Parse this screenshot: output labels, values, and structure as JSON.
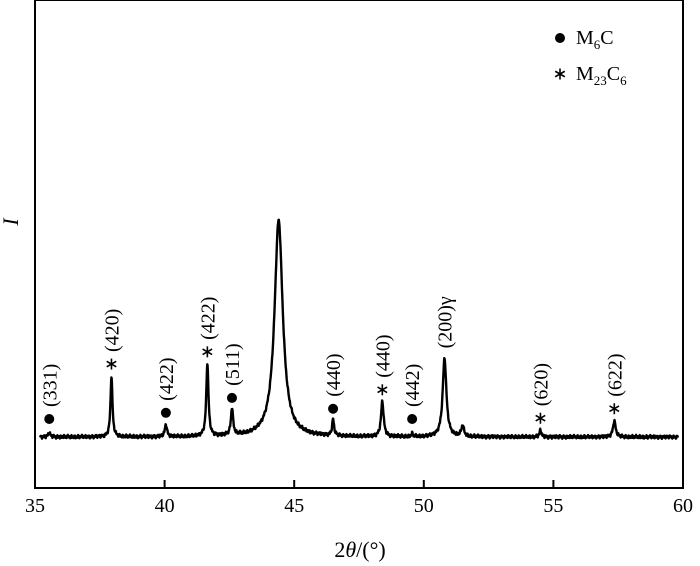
{
  "chart_data": {
    "type": "line",
    "xlabel": {
      "prefix": "2",
      "italic": "θ",
      "suffix": "/(°)"
    },
    "ylabel": "I",
    "xlim": [
      35,
      60
    ],
    "xticks": [
      35,
      40,
      45,
      50,
      55,
      60
    ],
    "yticks_shown": false,
    "grid": false,
    "legend": {
      "placement": "top-right",
      "entries": [
        {
          "symbol": "circle",
          "name_main": "M",
          "name_sub": "6",
          "name_tail": "C",
          "name_sub2": ""
        },
        {
          "symbol": "asterisk",
          "name_main": "M",
          "name_sub": "23",
          "name_tail": "C",
          "name_sub2": "6"
        }
      ]
    },
    "baseline": 0.0,
    "peaks": [
      {
        "x": 35.55,
        "height": 0.03,
        "width": 0.1,
        "phase": "M6C",
        "label": "(331)"
      },
      {
        "x": 37.95,
        "height": 0.45,
        "width": 0.09,
        "phase": "M23C6",
        "label": "(420)"
      },
      {
        "x": 40.05,
        "height": 0.09,
        "width": 0.1,
        "phase": "M6C",
        "label": "(422)"
      },
      {
        "x": 41.65,
        "height": 0.54,
        "width": 0.1,
        "phase": "M23C6",
        "label": "(422)"
      },
      {
        "x": 42.6,
        "height": 0.2,
        "width": 0.1,
        "phase": "M6C",
        "label": "(511)"
      },
      {
        "x": 44.4,
        "height": 1.6,
        "width": 0.38,
        "phase": "",
        "label": ""
      },
      {
        "x": 46.5,
        "height": 0.12,
        "width": 0.09,
        "phase": "M6C",
        "label": "(440)"
      },
      {
        "x": 48.4,
        "height": 0.26,
        "width": 0.12,
        "phase": "M23C6",
        "label": "(440)"
      },
      {
        "x": 49.55,
        "height": 0.02,
        "width": 0.08,
        "phase": "M6C",
        "label": "(442)"
      },
      {
        "x": 50.8,
        "height": 0.58,
        "width": 0.17,
        "phase": "",
        "label": "(200)γ"
      },
      {
        "x": 51.5,
        "height": 0.08,
        "width": 0.12,
        "phase": "",
        "label": ""
      },
      {
        "x": 54.5,
        "height": 0.05,
        "width": 0.09,
        "phase": "M23C6",
        "label": "(620)"
      },
      {
        "x": 57.35,
        "height": 0.12,
        "width": 0.12,
        "phase": "M23C6",
        "label": "(622)"
      }
    ]
  }
}
